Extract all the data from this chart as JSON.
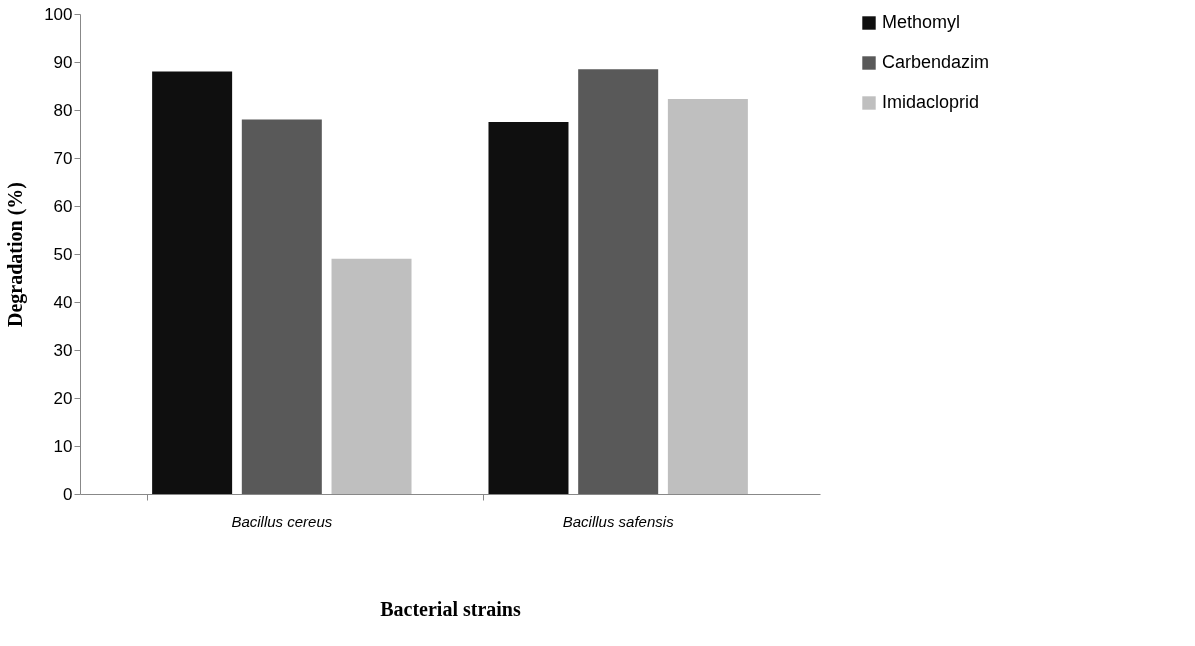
{
  "chart_data": {
    "type": "bar",
    "xlabel": "Bacterial strains",
    "ylabel": "Degradation  (%)",
    "categories": [
      "Bacillus cereus",
      "Bacillus safensis"
    ],
    "series": [
      {
        "name": "Methomyl",
        "color": "#0f0f0f",
        "values": [
          88,
          77.5
        ]
      },
      {
        "name": "Carbendazim",
        "color": "#595959",
        "values": [
          78,
          88.5
        ]
      },
      {
        "name": "Imidacloprid",
        "color": "#bfbfbf",
        "values": [
          49,
          82.3
        ]
      }
    ],
    "ylim": [
      0,
      100
    ],
    "yticks": [
      0,
      10,
      20,
      30,
      40,
      50,
      60,
      70,
      80,
      90,
      100
    ],
    "grid": false,
    "legend": "right"
  }
}
